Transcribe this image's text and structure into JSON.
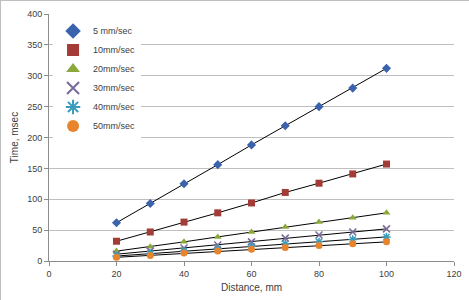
{
  "chart_data": {
    "type": "scatter",
    "x_label": "Distance, mm",
    "y_label": "Time, msec",
    "x": [
      20,
      30,
      40,
      50,
      60,
      70,
      80,
      90,
      100
    ],
    "series": [
      {
        "name": "5 mm/sec",
        "color": "#3b63ad",
        "marker": "diamond",
        "values": [
          62,
          93,
          125,
          156,
          188,
          219,
          250,
          280,
          312
        ]
      },
      {
        "name": "10mm/sec",
        "color": "#a33b36",
        "marker": "square",
        "values": [
          32,
          47,
          63,
          78,
          94,
          111,
          126,
          141,
          157
        ]
      },
      {
        "name": "20mm/sec",
        "color": "#8aa83c",
        "marker": "triangle",
        "values": [
          16,
          23,
          31,
          39,
          47,
          55,
          63,
          70,
          78
        ]
      },
      {
        "name": "30mm/sec",
        "color": "#7a6a9a",
        "marker": "x",
        "values": [
          11,
          16,
          21,
          26,
          31,
          37,
          42,
          47,
          52
        ]
      },
      {
        "name": "40mm/sec",
        "color": "#3a9bbd",
        "marker": "asterisk",
        "values": [
          8,
          12,
          16,
          20,
          24,
          28,
          31,
          35,
          39
        ]
      },
      {
        "name": "50mm/sec",
        "color": "#e8852c",
        "marker": "circle",
        "values": [
          6,
          9,
          13,
          16,
          19,
          22,
          25,
          28,
          31
        ]
      }
    ],
    "xlim": [
      0,
      120
    ],
    "xticks": [
      0,
      20,
      40,
      60,
      80,
      100,
      120
    ],
    "ylim": [
      0,
      400
    ],
    "yticks": [
      0,
      50,
      100,
      150,
      200,
      250,
      300,
      350,
      400
    ],
    "grid": true,
    "legend": "upper left",
    "line_style": "solid"
  }
}
